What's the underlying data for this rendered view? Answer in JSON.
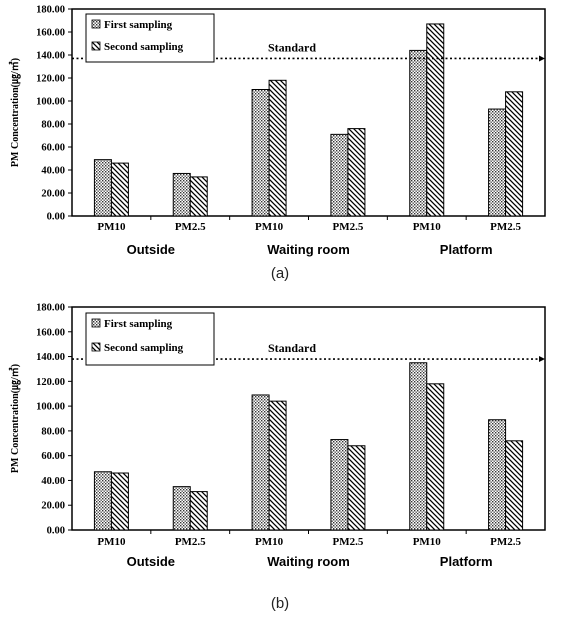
{
  "chart_data": [
    {
      "type": "bar",
      "ylabel": "PM Concentration(㎍/㎥)",
      "ylim": [
        0,
        180
      ],
      "yticks": [
        "0.00",
        "20.00",
        "40.00",
        "60.00",
        "80.00",
        "100.00",
        "120.00",
        "140.00",
        "160.00",
        "180.00"
      ],
      "categories": [
        "PM10",
        "PM2.5",
        "PM10",
        "PM2.5",
        "PM10",
        "PM2.5"
      ],
      "groups": [
        "Outside",
        "Waiting room",
        "Platform"
      ],
      "series": [
        {
          "name": "First sampling",
          "values": [
            49,
            37,
            110,
            71,
            144,
            93
          ],
          "color": "#ffffff"
        },
        {
          "name": "Second sampling",
          "values": [
            46,
            34,
            118,
            76,
            167,
            108
          ],
          "color": "#ffffff"
        }
      ],
      "reference_line": {
        "label": "Standard",
        "value": 137
      },
      "legend_position": "top-left",
      "grid": false,
      "caption": "(a)"
    },
    {
      "type": "bar",
      "ylabel": "PM Concentration(㎍/㎥)",
      "ylim": [
        0,
        180
      ],
      "yticks": [
        "0.00",
        "20.00",
        "40.00",
        "60.00",
        "80.00",
        "100.00",
        "120.00",
        "140.00",
        "160.00",
        "180.00"
      ],
      "categories": [
        "PM10",
        "PM2.5",
        "PM10",
        "PM2.5",
        "PM10",
        "PM2.5"
      ],
      "groups": [
        "Outside",
        "Waiting room",
        "Platform"
      ],
      "series": [
        {
          "name": "First sampling",
          "values": [
            47,
            35,
            109,
            73,
            135,
            89
          ],
          "color": "#ffffff"
        },
        {
          "name": "Second sampling",
          "values": [
            46,
            31,
            104,
            68,
            118,
            72
          ],
          "color": "#ffffff"
        }
      ],
      "reference_line": {
        "label": "Standard",
        "value": 138
      },
      "legend_position": "top-left",
      "grid": false,
      "caption": "(b)"
    }
  ]
}
